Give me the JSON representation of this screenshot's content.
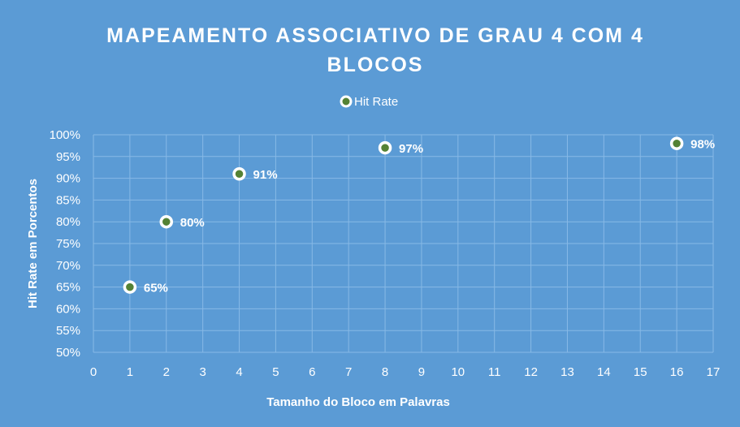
{
  "chart_data": {
    "type": "scatter",
    "title_lines": [
      "MAPEAMENTO ASSOCIATIVO DE GRAU 4 COM 4",
      "BLOCOS"
    ],
    "xlabel": "Tamanho do Bloco em Palavras",
    "ylabel": "Hit Rate em Porcentos",
    "xlim": [
      0,
      17
    ],
    "ylim": [
      0.5,
      1.0
    ],
    "x_ticks": [
      0,
      1,
      2,
      3,
      4,
      5,
      6,
      7,
      8,
      9,
      10,
      11,
      12,
      13,
      14,
      15,
      16,
      17
    ],
    "y_ticks": [
      "50%",
      "55%",
      "60%",
      "65%",
      "70%",
      "75%",
      "80%",
      "85%",
      "90%",
      "95%",
      "100%"
    ],
    "y_tick_values": [
      0.5,
      0.55,
      0.6,
      0.65,
      0.7,
      0.75,
      0.8,
      0.85,
      0.9,
      0.95,
      1.0
    ],
    "grid": true,
    "legend_position": "top-center",
    "series": [
      {
        "name": "Hit Rate",
        "marker_fill": "#548235",
        "marker_border": "#ffffff",
        "x": [
          1,
          2,
          4,
          8,
          16
        ],
        "y": [
          0.65,
          0.8,
          0.91,
          0.97,
          0.98
        ],
        "labels": [
          "65%",
          "80%",
          "91%",
          "97%",
          "98%"
        ]
      }
    ]
  },
  "colors": {
    "background": "#5b9bd5",
    "grid": "#87b9e6",
    "text": "#ffffff"
  }
}
